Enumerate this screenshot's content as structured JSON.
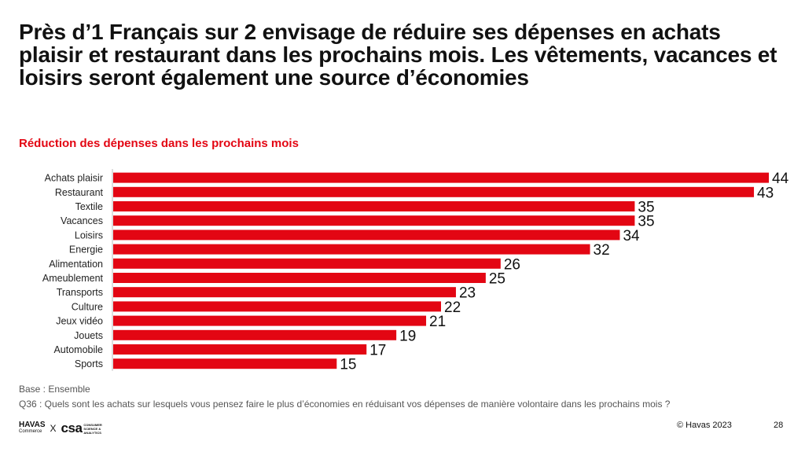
{
  "headline": "Près d’1 Français sur 2 envisage de réduire ses dépenses en achats plaisir et restaurant dans les prochains mois. Les vêtements, vacances et loisirs seront également une source d’économies",
  "footer": {
    "base": "Base : Ensemble",
    "question": "Q36 : Quels sont les achats sur lesquels vous pensez faire le plus d’économies en réduisant vos dépenses de manière volontaire dans les prochains mois ?",
    "logo_havas": "HAVAS",
    "logo_havas_sub": "Commerce",
    "logo_separator": "X",
    "logo_csa": "csa",
    "logo_csa_tag": "CONSUMER SCIENCE & ANALYTICS",
    "copyright": "© Havas 2023",
    "page_number": "28"
  },
  "colors": {
    "bar": "#e30613",
    "accent_text": "#e30613",
    "text": "#111111"
  },
  "chart_data": {
    "type": "bar",
    "orientation": "horizontal",
    "title": "Réduction des dépenses dans les prochains mois",
    "categories": [
      "Achats plaisir",
      "Restaurant",
      "Textile",
      "Vacances",
      "Loisirs",
      "Energie",
      "Alimentation",
      "Ameublement",
      "Transports",
      "Culture",
      "Jeux vidéo",
      "Jouets",
      "Automobile",
      "Sports"
    ],
    "values": [
      44,
      43,
      35,
      35,
      34,
      32,
      26,
      25,
      23,
      22,
      21,
      19,
      17,
      15
    ],
    "xlim": [
      0,
      44
    ],
    "grid": false,
    "legend": "none"
  }
}
